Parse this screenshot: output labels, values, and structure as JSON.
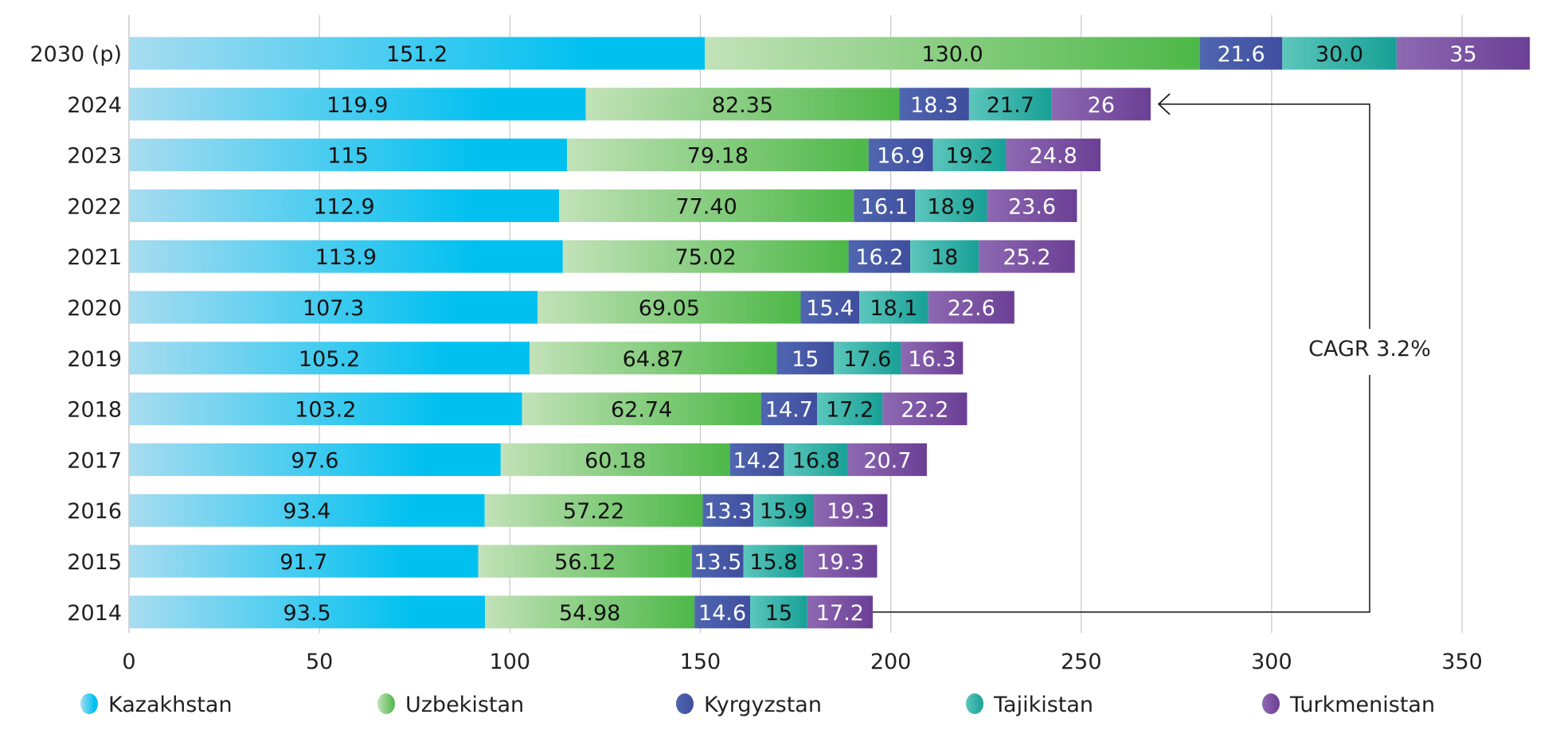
{
  "chart_data": {
    "type": "bar",
    "orientation": "horizontal",
    "stacked": true,
    "categories": [
      "2030 (p)",
      "2024",
      "2023",
      "2022",
      "2021",
      "2020",
      "2019",
      "2018",
      "2017",
      "2016",
      "2015",
      "2014"
    ],
    "series": [
      {
        "name": "Kazakhstan",
        "color": "#00c0f0",
        "color_light": "#a8dcf0",
        "values": [
          151.2,
          119.9,
          115,
          112.9,
          113.9,
          107.3,
          105.2,
          103.2,
          97.6,
          93.4,
          91.7,
          93.5
        ],
        "labels": [
          "151.2",
          "119.9",
          "115",
          "112.9",
          "113.9",
          "107.3",
          "105.2",
          "103.2",
          "97.6",
          "93.4",
          "91.7",
          "93.5"
        ]
      },
      {
        "name": "Uzbekistan",
        "color": "#4db848",
        "color_light": "#c2e2b8",
        "values": [
          130.0,
          82.35,
          79.18,
          77.4,
          75.02,
          69.05,
          64.87,
          62.74,
          60.18,
          57.22,
          56.12,
          54.98
        ],
        "labels": [
          "130.0",
          "82.35",
          "79.18",
          "77.40",
          "75.02",
          "69.05",
          "64.87",
          "62.74",
          "60.18",
          "57.22",
          "56.12",
          "54.98"
        ]
      },
      {
        "name": "Kyrgyzstan",
        "color": "#3f4e9e",
        "color_light": "#4f66b0",
        "values": [
          21.6,
          18.3,
          16.9,
          16.1,
          16.2,
          15.4,
          15,
          14.7,
          14.2,
          13.3,
          13.5,
          14.6
        ],
        "labels": [
          "21.6",
          "18.3",
          "16.9",
          "16.1",
          "16.2",
          "15.4",
          "15",
          "14.7",
          "14.2",
          "13.3",
          "13.5",
          "14.6"
        ]
      },
      {
        "name": "Tajikistan",
        "color": "#17a096",
        "color_light": "#5cc6bc",
        "values": [
          30.0,
          21.7,
          19.2,
          18.9,
          18,
          18.1,
          17.6,
          17.2,
          16.8,
          15.9,
          15.8,
          15
        ],
        "labels": [
          "30.0",
          "21.7",
          "19.2",
          "18.9",
          "18",
          "18,1",
          "17.6",
          "17.2",
          "16.8",
          "15.9",
          "15.8",
          "15"
        ]
      },
      {
        "name": "Turkmenistan",
        "color": "#6b3f95",
        "color_light": "#8d69b2",
        "values": [
          35,
          26,
          24.8,
          23.6,
          25.2,
          22.6,
          16.3,
          22.2,
          20.7,
          19.3,
          19.3,
          17.2
        ],
        "labels": [
          "35",
          "26",
          "24.8",
          "23.6",
          "25.2",
          "22.6",
          "16.3",
          "22.2",
          "20.7",
          "19.3",
          "19.3",
          "17.2"
        ]
      }
    ],
    "xlim": [
      0,
      370
    ],
    "xticks": [
      "0",
      "50",
      "100",
      "150",
      "200",
      "250",
      "300",
      "350"
    ],
    "grid": true,
    "legend": "bottom",
    "annotation": {
      "text": "CAGR 3.2%",
      "from": "2014",
      "to": "2024"
    }
  }
}
